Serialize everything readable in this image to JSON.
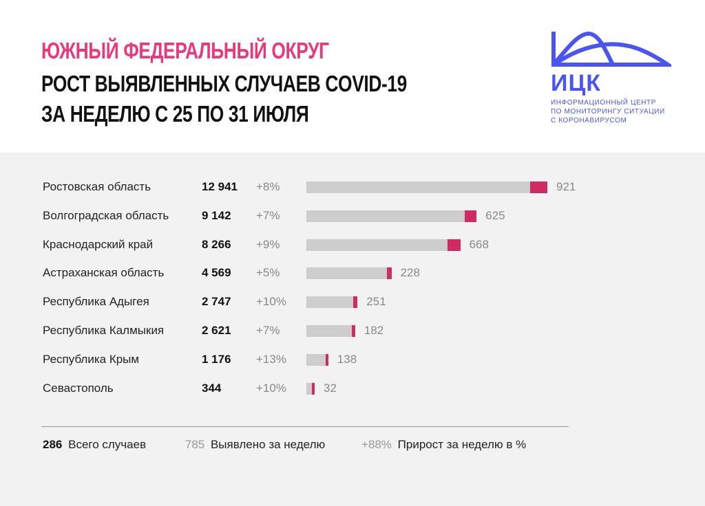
{
  "title": {
    "line1": "ЮЖНЫЙ ФЕДЕРАЛЬНЫЙ ОКРУГ",
    "line2": "РОСТ ВЫЯВЛЕННЫХ СЛУЧАЕВ COVID-19",
    "line3": "ЗА НЕДЕЛЮ С 25 ПО 31 ИЮЛЯ"
  },
  "logo": {
    "abbr": "ИЦК",
    "line1": "ИНФОРМАЦИОННЫЙ ЦЕНТР",
    "line2": "ПО МОНИТОРИНГУ СИТУАЦИИ",
    "line3": "С КОРОНАВИРУСОМ"
  },
  "colors": {
    "accent": "#e8397d",
    "bar_total": "#cdcdcd",
    "bar_new": "#cf2a62",
    "logo": "#4a55f0"
  },
  "chart_data": {
    "type": "bar",
    "orientation": "horizontal",
    "stacked": true,
    "categories": [
      "Ростовская область",
      "Волгоградская область",
      "Краснодарский край",
      "Астраханская область",
      "Республика Адыгея",
      "Республика Калмыкия",
      "Республика Крым",
      "Севастополь"
    ],
    "totals": [
      "12 941",
      "9 142",
      "8 266",
      "4 569",
      "2 747",
      "2 621",
      "1 176",
      "344"
    ],
    "growth": [
      "+8%",
      "+7%",
      "+9%",
      "+5%",
      "+10%",
      "+7%",
      "+13%",
      "+10%"
    ],
    "total_values": [
      12941,
      9142,
      8266,
      4569,
      2747,
      2621,
      1176,
      344
    ],
    "new_values": [
      921,
      625,
      668,
      228,
      251,
      182,
      138,
      32
    ]
  },
  "legend": {
    "total_num": "286",
    "total_label": "Всего случаев",
    "new_num": "785",
    "new_label": "Выявлено за неделю",
    "growth_num": "+88%",
    "growth_label": "Прирост за неделю в %"
  }
}
